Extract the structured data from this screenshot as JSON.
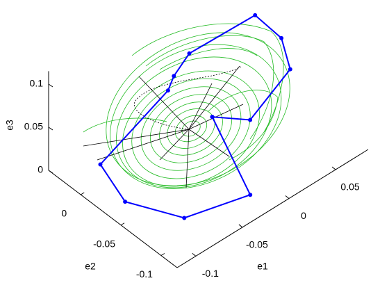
{
  "chart_data": {
    "type": "line3d",
    "xlabel": "e1",
    "ylabel": "e2",
    "zlabel": "e3",
    "xlim": [
      -0.12,
      0.085
    ],
    "ylim": [
      -0.12,
      0.04
    ],
    "zlim": [
      0,
      0.115
    ],
    "xticks": [
      -0.1,
      -0.05,
      0,
      0.05
    ],
    "yticks": [
      -0.1,
      -0.05,
      0
    ],
    "zticks": [
      0,
      0.05,
      0.1
    ],
    "series": [
      {
        "color": "#0000ff",
        "x": [
          -0.022,
          -0.02,
          -0.077,
          -0.106,
          -0.105,
          -0.041,
          -0.033,
          -0.013,
          0.049,
          0.05,
          0.041,
          -0.002,
          -0.022
        ],
        "y": [
          -0.05,
          -0.095,
          -0.079,
          -0.039,
          -0.007,
          -0.017,
          -0.015,
          -0.011,
          -0.021,
          -0.0526,
          -0.074,
          -0.074,
          -0.05
        ],
        "z": [
          0.06,
          0,
          0,
          0.01,
          0.03,
          0.08,
          0.09,
          0.1,
          0.11,
          0.105,
          0.09,
          0.06,
          0.06
        ]
      }
    ]
  }
}
